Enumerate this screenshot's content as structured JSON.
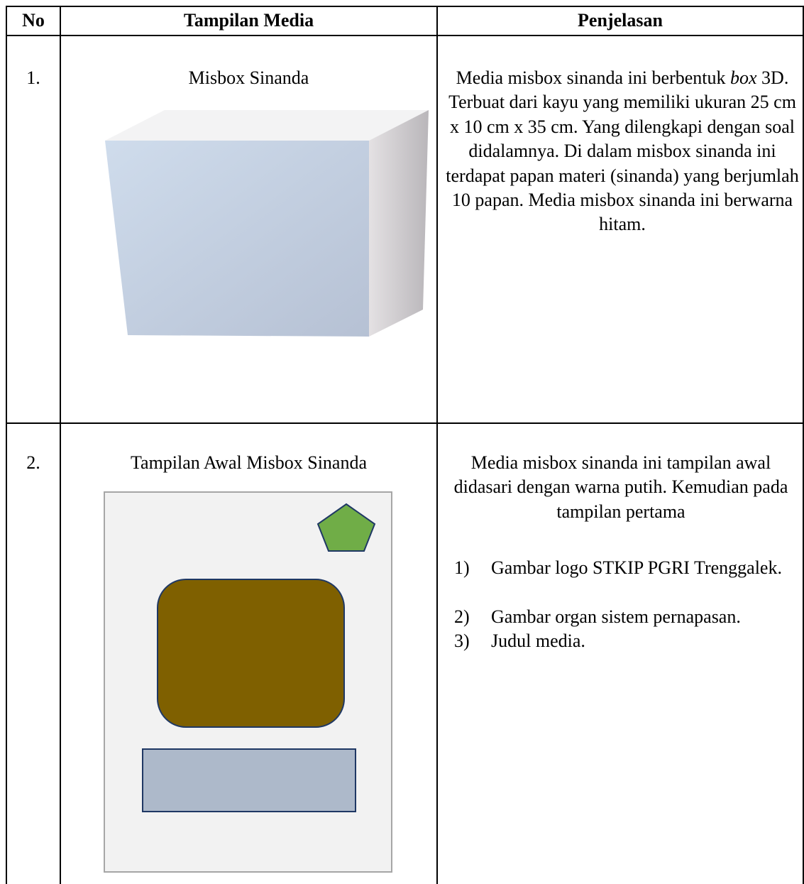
{
  "table": {
    "headers": [
      "No",
      "Tampilan Media",
      "Penjelasan"
    ],
    "rows": [
      {
        "no": "1.",
        "title": "Misbox Sinanda",
        "description_before": "Media misbox sinanda ini berbentuk",
        "description_italic": "box",
        "description_after": "3D. Terbuat dari kayu yang memiliki ukuran 25 cm x 10 cm x 35 cm. Yang dilengkapi dengan soal didalamnya. Di dalam misbox sinanda ini terdapat papan materi (sinanda) yang berjumlah 10 papan. Media misbox sinanda ini berwarna hitam."
      },
      {
        "no": "2.",
        "title": "Tampilan Awal Misbox Sinanda",
        "description": "Media misbox sinanda ini tampilan awal didasari dengan warna putih. Kemudian pada tampilan pertama",
        "list": [
          {
            "marker": "1)",
            "text": "Gambar logo STKIP PGRI Trenggalek."
          },
          {
            "marker": "2)",
            "text": "Gambar organ sistem pernapasan."
          },
          {
            "marker": "3)",
            "text": "Judul media."
          }
        ]
      }
    ]
  }
}
